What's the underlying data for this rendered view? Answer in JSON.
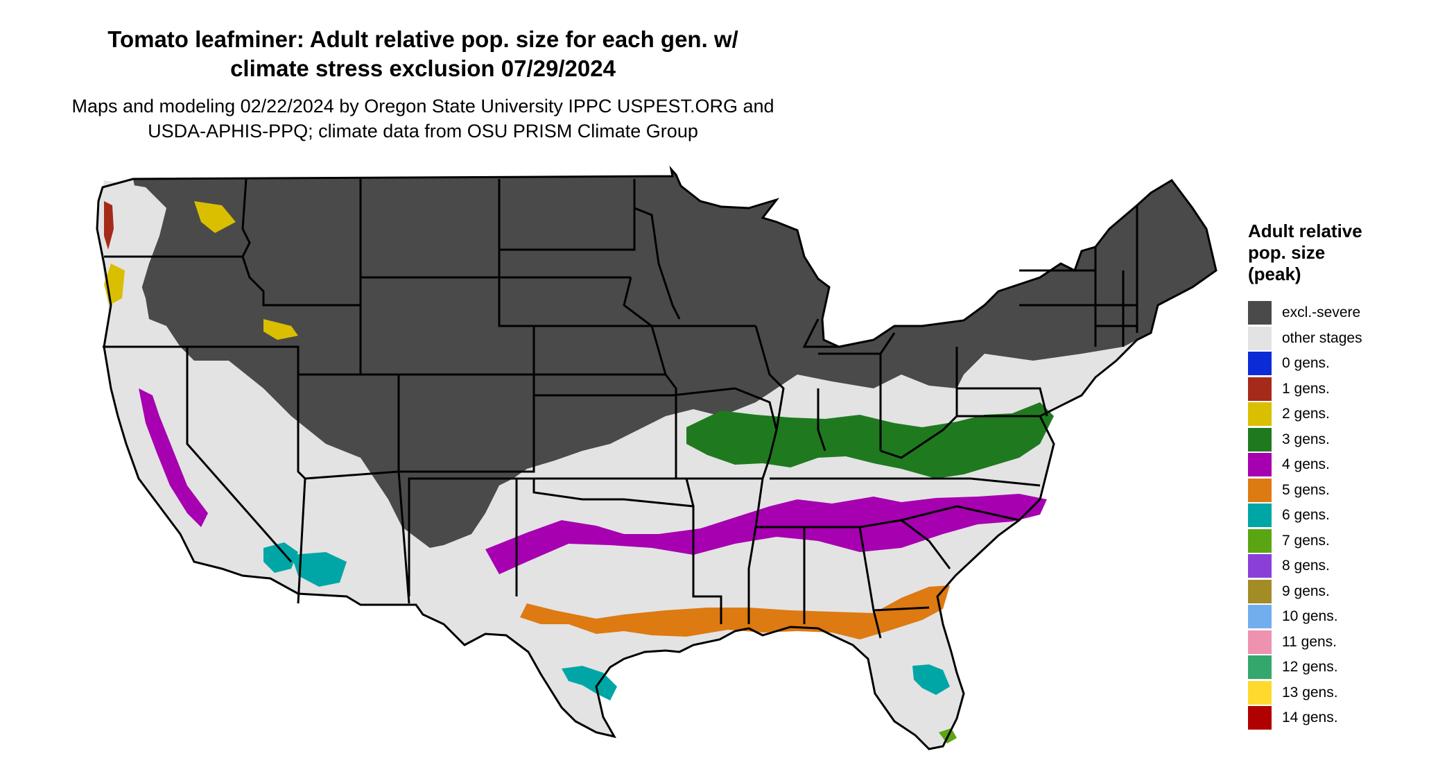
{
  "title_line1": "Tomato leafminer: Adult relative pop. size for each gen. w/",
  "title_line2": "climate stress exclusion 07/29/2024",
  "subtitle_line1": "Maps and modeling 02/22/2024 by Oregon State University IPPC USPEST.ORG and",
  "subtitle_line2": "USDA-APHIS-PPQ; climate data from OSU PRISM Climate Group",
  "legend": {
    "title_line1": "Adult relative",
    "title_line2": "pop. size",
    "title_line3": "(peak)",
    "items": [
      {
        "label": "excl.-severe",
        "color": "#4a4a4a"
      },
      {
        "label": "other stages",
        "color": "#e3e3e3"
      },
      {
        "label": "0 gens.",
        "color": "#0b2bd6"
      },
      {
        "label": "1 gens.",
        "color": "#a52a1a"
      },
      {
        "label": "2 gens.",
        "color": "#d9bf00"
      },
      {
        "label": "3 gens.",
        "color": "#1f7a1f"
      },
      {
        "label": "4 gens.",
        "color": "#a600b0"
      },
      {
        "label": "5 gens.",
        "color": "#dd7a12"
      },
      {
        "label": "6 gens.",
        "color": "#00a6a6"
      },
      {
        "label": "7 gens.",
        "color": "#5aa512"
      },
      {
        "label": "8 gens.",
        "color": "#8a3fd9"
      },
      {
        "label": "9 gens.",
        "color": "#a38b26"
      },
      {
        "label": "10 gens.",
        "color": "#72aeee"
      },
      {
        "label": "11 gens.",
        "color": "#ee92b0"
      },
      {
        "label": "12 gens.",
        "color": "#34a86c"
      },
      {
        "label": "13 gens.",
        "color": "#ffd92e"
      },
      {
        "label": "14 gens.",
        "color": "#b00000"
      }
    ]
  }
}
